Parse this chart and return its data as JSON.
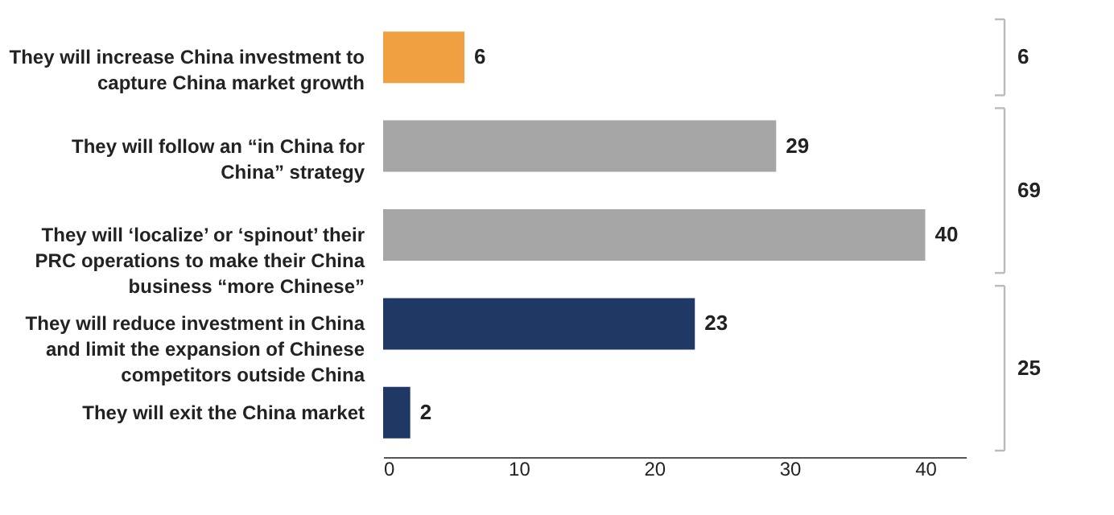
{
  "chart_data": {
    "type": "bar",
    "orientation": "horizontal",
    "categories": [
      "They will increase China investment to\ncapture China market growth",
      "They will follow an “in China for\nChina” strategy",
      "They will ‘localize’ or ‘spinout’ their\nPRC operations to make their China\nbusiness “more Chinese”",
      "They will reduce investment in China\nand limit the expansion of Chinese\ncompetitors outside China",
      "They will exit the China market"
    ],
    "values": [
      6,
      29,
      40,
      23,
      2
    ],
    "colors": [
      "#f0a040",
      "#a6a6a6",
      "#a6a6a6",
      "#1f3864",
      "#1f3864"
    ],
    "xlim": [
      0,
      43
    ],
    "xticks": [
      0,
      10,
      20,
      30,
      40
    ],
    "data_labels": true,
    "grid": false,
    "annotations": [
      "6",
      "69",
      "25"
    ]
  }
}
